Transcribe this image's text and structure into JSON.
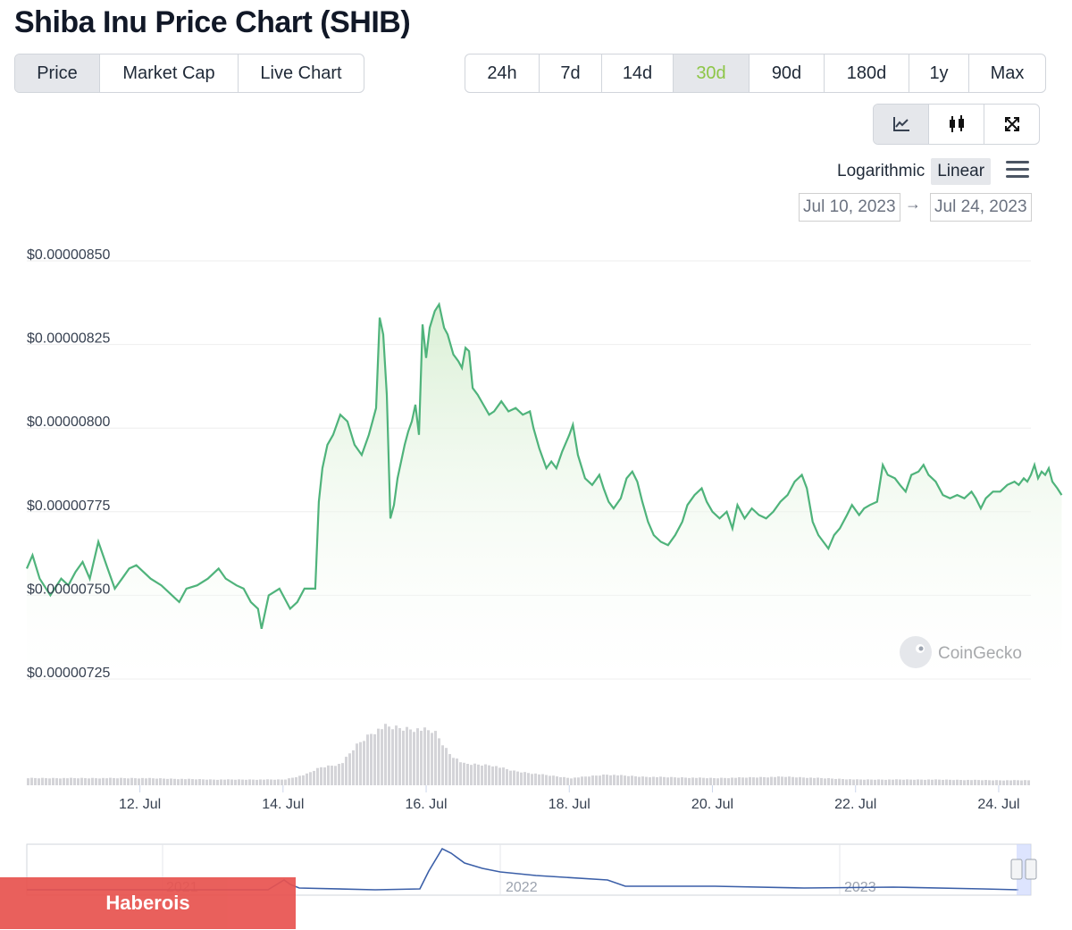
{
  "title": "Shiba Inu Price Chart (SHIB)",
  "view_tabs": [
    {
      "label": "Price",
      "active": true
    },
    {
      "label": "Market Cap",
      "active": false
    },
    {
      "label": "Live Chart",
      "active": false
    }
  ],
  "range_tabs": [
    {
      "label": "24h",
      "active": false
    },
    {
      "label": "7d",
      "active": false
    },
    {
      "label": "14d",
      "active": false
    },
    {
      "label": "30d",
      "active": true
    },
    {
      "label": "90d",
      "active": false
    },
    {
      "label": "180d",
      "active": false
    },
    {
      "label": "1y",
      "active": false
    },
    {
      "label": "Max",
      "active": false
    }
  ],
  "tools": [
    {
      "icon": "line-chart-icon",
      "active": true
    },
    {
      "icon": "candlestick-icon",
      "active": false
    },
    {
      "icon": "fullscreen-icon",
      "active": false
    }
  ],
  "scale": {
    "logarithmic": "Logarithmic",
    "linear": "Linear",
    "active": "linear"
  },
  "date_range": {
    "from": "Jul 10, 2023",
    "to": "Jul 24, 2023",
    "arrow": "→"
  },
  "watermark": "CoinGecko",
  "banner": "Haberois",
  "colors": {
    "line": "#4fb37b",
    "fill": "#e8f5e5",
    "accent": "#8dc647",
    "volume": "#d4d4d8",
    "navigator": "#3b5fa8"
  },
  "chart_data": {
    "type": "area",
    "ylabels": [
      "$0.00000850",
      "$0.00000825",
      "$0.00000800",
      "$0.00000775",
      "$0.00000750",
      "$0.00000725"
    ],
    "yticks": [
      8.5e-06,
      8.25e-06,
      8e-06,
      7.75e-06,
      7.5e-06,
      7.25e-06
    ],
    "ylim": [
      7.25e-06,
      8.5e-06
    ],
    "xlim": [
      10.42,
      24.45
    ],
    "xticks": [
      12,
      14,
      16,
      18,
      20,
      22,
      24
    ],
    "xlabels": [
      "12. Jul",
      "14. Jul",
      "16. Jul",
      "18. Jul",
      "20. Jul",
      "22. Jul",
      "24. Jul"
    ],
    "grid": true,
    "series": [
      {
        "values": [
          [
            10.42,
            7.58
          ],
          [
            10.5,
            7.62
          ],
          [
            10.6,
            7.55
          ],
          [
            10.75,
            7.5
          ],
          [
            10.9,
            7.55
          ],
          [
            11.0,
            7.53
          ],
          [
            11.1,
            7.57
          ],
          [
            11.2,
            7.6
          ],
          [
            11.3,
            7.55
          ],
          [
            11.42,
            7.66
          ],
          [
            11.55,
            7.58
          ],
          [
            11.65,
            7.52
          ],
          [
            11.75,
            7.55
          ],
          [
            11.85,
            7.58
          ],
          [
            11.95,
            7.59
          ],
          [
            12.05,
            7.57
          ],
          [
            12.15,
            7.55
          ],
          [
            12.3,
            7.53
          ],
          [
            12.45,
            7.5
          ],
          [
            12.55,
            7.48
          ],
          [
            12.65,
            7.52
          ],
          [
            12.8,
            7.53
          ],
          [
            12.95,
            7.55
          ],
          [
            13.1,
            7.58
          ],
          [
            13.2,
            7.55
          ],
          [
            13.35,
            7.53
          ],
          [
            13.45,
            7.52
          ],
          [
            13.55,
            7.48
          ],
          [
            13.65,
            7.46
          ],
          [
            13.7,
            7.4
          ],
          [
            13.8,
            7.5
          ],
          [
            13.95,
            7.52
          ],
          [
            14.1,
            7.46
          ],
          [
            14.2,
            7.48
          ],
          [
            14.3,
            7.52
          ],
          [
            14.45,
            7.52
          ],
          [
            14.5,
            7.78
          ],
          [
            14.55,
            7.88
          ],
          [
            14.62,
            7.95
          ],
          [
            14.7,
            7.98
          ],
          [
            14.8,
            8.04
          ],
          [
            14.9,
            8.02
          ],
          [
            15.0,
            7.95
          ],
          [
            15.1,
            7.92
          ],
          [
            15.2,
            7.98
          ],
          [
            15.25,
            8.02
          ],
          [
            15.3,
            8.06
          ],
          [
            15.35,
            8.33
          ],
          [
            15.4,
            8.28
          ],
          [
            15.45,
            8.1
          ],
          [
            15.5,
            7.73
          ],
          [
            15.55,
            7.77
          ],
          [
            15.6,
            7.85
          ],
          [
            15.7,
            7.95
          ],
          [
            15.75,
            7.99
          ],
          [
            15.8,
            8.02
          ],
          [
            15.85,
            8.07
          ],
          [
            15.9,
            7.98
          ],
          [
            15.95,
            8.31
          ],
          [
            16.0,
            8.21
          ],
          [
            16.05,
            8.3
          ],
          [
            16.12,
            8.35
          ],
          [
            16.18,
            8.37
          ],
          [
            16.25,
            8.3
          ],
          [
            16.3,
            8.28
          ],
          [
            16.38,
            8.22
          ],
          [
            16.45,
            8.2
          ],
          [
            16.5,
            8.18
          ],
          [
            16.55,
            8.24
          ],
          [
            16.6,
            8.23
          ],
          [
            16.65,
            8.12
          ],
          [
            16.72,
            8.1
          ],
          [
            16.8,
            8.07
          ],
          [
            16.88,
            8.04
          ],
          [
            16.95,
            8.05
          ],
          [
            17.05,
            8.08
          ],
          [
            17.15,
            8.05
          ],
          [
            17.25,
            8.06
          ],
          [
            17.35,
            8.04
          ],
          [
            17.45,
            8.05
          ],
          [
            17.5,
            8.0
          ],
          [
            17.58,
            7.94
          ],
          [
            17.68,
            7.88
          ],
          [
            17.75,
            7.9
          ],
          [
            17.82,
            7.88
          ],
          [
            17.9,
            7.93
          ],
          [
            18.0,
            7.98
          ],
          [
            18.05,
            8.01
          ],
          [
            18.12,
            7.92
          ],
          [
            18.22,
            7.85
          ],
          [
            18.32,
            7.83
          ],
          [
            18.42,
            7.86
          ],
          [
            18.48,
            7.82
          ],
          [
            18.55,
            7.78
          ],
          [
            18.62,
            7.76
          ],
          [
            18.72,
            7.79
          ],
          [
            18.8,
            7.85
          ],
          [
            18.88,
            7.87
          ],
          [
            18.95,
            7.84
          ],
          [
            19.02,
            7.78
          ],
          [
            19.1,
            7.72
          ],
          [
            19.18,
            7.68
          ],
          [
            19.28,
            7.66
          ],
          [
            19.38,
            7.65
          ],
          [
            19.48,
            7.68
          ],
          [
            19.58,
            7.72
          ],
          [
            19.65,
            7.77
          ],
          [
            19.75,
            7.8
          ],
          [
            19.85,
            7.82
          ],
          [
            19.92,
            7.78
          ],
          [
            20.0,
            7.75
          ],
          [
            20.1,
            7.73
          ],
          [
            20.2,
            7.75
          ],
          [
            20.28,
            7.7
          ],
          [
            20.35,
            7.77
          ],
          [
            20.45,
            7.73
          ],
          [
            20.55,
            7.76
          ],
          [
            20.65,
            7.74
          ],
          [
            20.75,
            7.73
          ],
          [
            20.85,
            7.75
          ],
          [
            20.95,
            7.78
          ],
          [
            21.05,
            7.8
          ],
          [
            21.15,
            7.84
          ],
          [
            21.25,
            7.86
          ],
          [
            21.32,
            7.82
          ],
          [
            21.4,
            7.72
          ],
          [
            21.48,
            7.68
          ],
          [
            21.55,
            7.66
          ],
          [
            21.62,
            7.64
          ],
          [
            21.7,
            7.68
          ],
          [
            21.78,
            7.7
          ],
          [
            21.88,
            7.74
          ],
          [
            21.95,
            7.77
          ],
          [
            22.05,
            7.74
          ],
          [
            22.12,
            7.76
          ],
          [
            22.2,
            7.77
          ],
          [
            22.3,
            7.78
          ],
          [
            22.38,
            7.89
          ],
          [
            22.45,
            7.86
          ],
          [
            22.55,
            7.85
          ],
          [
            22.62,
            7.83
          ],
          [
            22.7,
            7.81
          ],
          [
            22.78,
            7.86
          ],
          [
            22.88,
            7.87
          ],
          [
            22.95,
            7.89
          ],
          [
            23.02,
            7.86
          ],
          [
            23.12,
            7.84
          ],
          [
            23.22,
            7.8
          ],
          [
            23.32,
            7.79
          ],
          [
            23.42,
            7.8
          ],
          [
            23.52,
            7.79
          ],
          [
            23.62,
            7.81
          ],
          [
            23.68,
            7.79
          ],
          [
            23.75,
            7.76
          ],
          [
            23.82,
            7.79
          ],
          [
            23.92,
            7.81
          ],
          [
            24.02,
            7.81
          ],
          [
            24.12,
            7.83
          ],
          [
            24.22,
            7.84
          ],
          [
            24.28,
            7.83
          ],
          [
            24.35,
            7.85
          ],
          [
            24.4,
            7.84
          ],
          [
            24.45,
            7.86
          ],
          [
            24.5,
            7.89
          ],
          [
            24.55,
            7.85
          ],
          [
            24.6,
            7.87
          ],
          [
            24.65,
            7.86
          ],
          [
            24.7,
            7.88
          ],
          [
            24.75,
            7.84
          ],
          [
            24.82,
            7.82
          ],
          [
            24.88,
            7.8
          ]
        ]
      }
    ],
    "volume_profile": [
      [
        10.42,
        0.1
      ],
      [
        12.0,
        0.1
      ],
      [
        13.0,
        0.08
      ],
      [
        14.0,
        0.08
      ],
      [
        14.3,
        0.15
      ],
      [
        14.5,
        0.25
      ],
      [
        14.8,
        0.3
      ],
      [
        15.0,
        0.55
      ],
      [
        15.2,
        0.72
      ],
      [
        15.4,
        0.82
      ],
      [
        15.6,
        0.8
      ],
      [
        15.9,
        0.78
      ],
      [
        16.1,
        0.75
      ],
      [
        16.3,
        0.45
      ],
      [
        16.5,
        0.3
      ],
      [
        16.9,
        0.28
      ],
      [
        17.2,
        0.2
      ],
      [
        17.6,
        0.15
      ],
      [
        18.0,
        0.1
      ],
      [
        18.5,
        0.15
      ],
      [
        19.0,
        0.12
      ],
      [
        20.0,
        0.1
      ],
      [
        21.0,
        0.12
      ],
      [
        22.0,
        0.08
      ],
      [
        23.0,
        0.08
      ],
      [
        24.0,
        0.07
      ],
      [
        24.88,
        0.07
      ]
    ],
    "navigator": {
      "labels": [
        "2021",
        "2022",
        "2023"
      ]
    }
  }
}
